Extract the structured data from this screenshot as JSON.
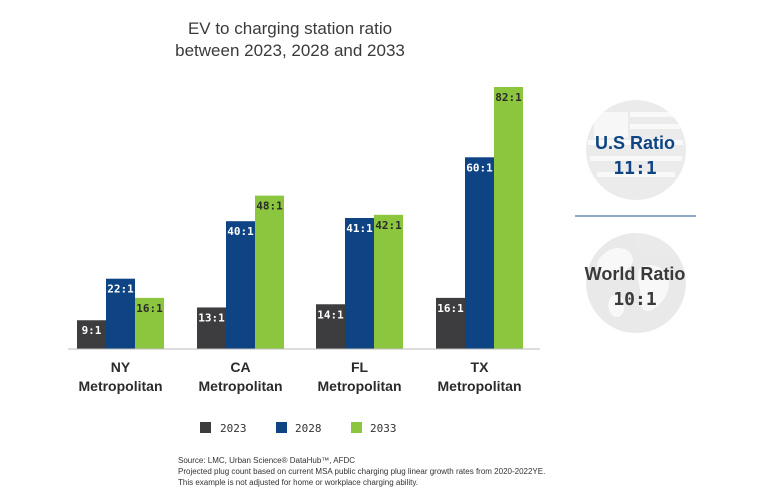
{
  "chart_data": {
    "type": "bar",
    "title_line1": "EV to charging station ratio",
    "title_line2": "between 2023, 2028 and 2033",
    "categories": [
      {
        "line1": "NY",
        "line2": "Metropolitan"
      },
      {
        "line1": "CA",
        "line2": "Metropolitan"
      },
      {
        "line1": "FL",
        "line2": "Metropolitan"
      },
      {
        "line1": "TX",
        "line2": "Metropolitan"
      }
    ],
    "series": [
      {
        "name": "2023",
        "color": "#3d3d40",
        "values": [
          9,
          13,
          14,
          16
        ],
        "labels": [
          "9:1",
          "13:1",
          "14:1",
          "16:1"
        ]
      },
      {
        "name": "2028",
        "color": "#0e4483",
        "values": [
          22,
          40,
          41,
          60
        ],
        "labels": [
          "22:1",
          "40:1",
          "41:1",
          "60:1"
        ]
      },
      {
        "name": "2033",
        "color": "#8cc63e",
        "values": [
          16,
          48,
          42,
          82
        ],
        "labels": [
          "16:1",
          "48:1",
          "42:1",
          "82:1"
        ]
      }
    ],
    "ylim": [
      0,
      82
    ],
    "legend_position": "bottom",
    "grid": false
  },
  "side_panel": {
    "us": {
      "title": "U.S Ratio",
      "value": "11:1",
      "color": "#0e4483",
      "icon": "us-flag-globe-icon"
    },
    "world": {
      "title": "World Ratio",
      "value": "10:1",
      "color": "#3a3a3a",
      "icon": "world-globe-icon"
    },
    "divider_color": "#4d7aa6"
  },
  "footnotes": [
    "Source: LMC, Urban Science® DataHub™, AFDC",
    "Projected plug count based on current MSA public charging plug linear growth rates from 2020-2022YE.",
    "This example is not adjusted for home or workplace charging ability."
  ]
}
